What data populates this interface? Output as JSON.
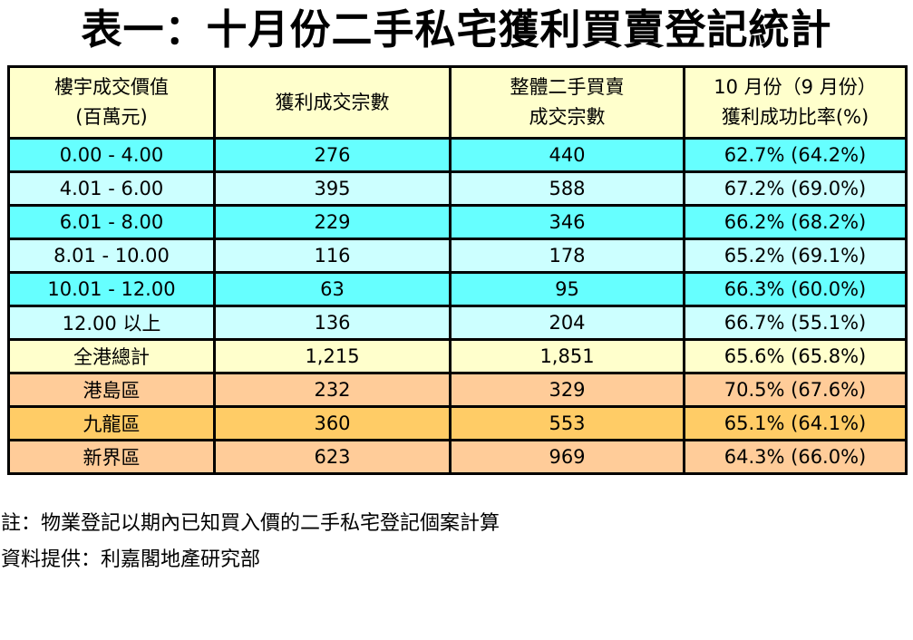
{
  "title": "表一：十月份二手私宅獲利買賣登記統計",
  "table": {
    "columns": [
      {
        "line1": "樓宇成交價值",
        "line2": "(百萬元)"
      },
      {
        "line1": "獲利成交宗數",
        "line2": ""
      },
      {
        "line1": "整體二手買賣",
        "line2": "成交宗數"
      },
      {
        "line1": "10 月份（9 月份）",
        "line2": "獲利成功比率(%)"
      }
    ],
    "rows": [
      {
        "label": "0.00 - 4.00",
        "profit": "276",
        "total": "440",
        "ratio": "62.7% (64.2%)",
        "bg": "cyan"
      },
      {
        "label": "4.01 - 6.00",
        "profit": "395",
        "total": "588",
        "ratio": "67.2% (69.0%)",
        "bg": "lightcyan"
      },
      {
        "label": "6.01 - 8.00",
        "profit": "229",
        "total": "346",
        "ratio": "66.2% (68.2%)",
        "bg": "cyan"
      },
      {
        "label": "8.01 - 10.00",
        "profit": "116",
        "total": "178",
        "ratio": "65.2% (69.1%)",
        "bg": "lightcyan"
      },
      {
        "label": "10.01 - 12.00",
        "profit": "63",
        "total": "95",
        "ratio": "66.3% (60.0%)",
        "bg": "cyan"
      },
      {
        "label": "12.00 以上",
        "profit": "136",
        "total": "204",
        "ratio": "66.7% (55.1%)",
        "bg": "lightcyan"
      },
      {
        "label": "全港總計",
        "profit": "1,215",
        "total": "1,851",
        "ratio": "65.6% (65.8%)",
        "bg": "yellow"
      },
      {
        "label": "港島區",
        "profit": "232",
        "total": "329",
        "ratio": "70.5% (67.6%)",
        "bg": "peach"
      },
      {
        "label": "九龍區",
        "profit": "360",
        "total": "553",
        "ratio": "65.1% (64.1%)",
        "bg": "orange"
      },
      {
        "label": "新界區",
        "profit": "623",
        "total": "969",
        "ratio": "64.3% (66.0%)",
        "bg": "peach"
      }
    ]
  },
  "notes": [
    "註：物業登記以期內已知買入價的二手私宅登記個案計算",
    "資料提供：利嘉閣地產研究部"
  ],
  "colors": {
    "header_bg": "#FFFFCC",
    "row_cyan": "#66FFFF",
    "row_light_cyan": "#CCFFFF",
    "row_total_bg": "#FFFFCC",
    "row_district_peach": "#FFCC99",
    "row_district_orange": "#FFCC66",
    "border": "#000000",
    "text": "#000000",
    "page_bg": "#FFFFFF"
  }
}
